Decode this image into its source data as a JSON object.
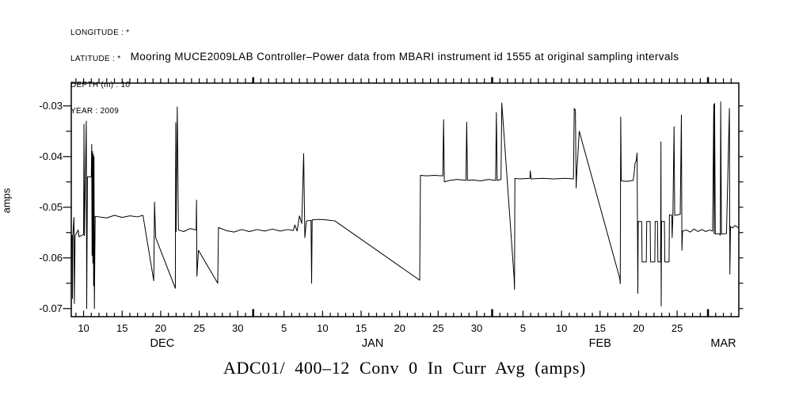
{
  "meta": {
    "lines": [
      "LONGITUDE : *",
      "LATITUDE : *",
      "DEPTH (m) : 10",
      "YEAR : 2009"
    ]
  },
  "header": {
    "title": "Mooring MUCE2009LAB Controller–Power data from MBARI instrument id 1555 at original sampling intervals"
  },
  "footer": {
    "title": "ADC01/ 400–12 Conv 0 In Curr Avg (amps)"
  },
  "chart_data": {
    "type": "line",
    "title": "Mooring MUCE2009LAB Controller–Power data from MBARI instrument id 1555 at original sampling intervals",
    "subtitle": "ADC01/ 400–12 Conv 0 In Curr Avg (amps)",
    "xlabel": "",
    "ylabel": "amps",
    "grid": false,
    "legend_position": "none",
    "line_color": "#000000",
    "background_color": "#ffffff",
    "x_axis": {
      "unit": "days, 0 = 2008-12-01",
      "range": [
        7.4,
        94.0
      ],
      "day_tick_from": 8,
      "day_tick_to": 93,
      "labeled_ticks": [
        {
          "t": 9,
          "label": "10"
        },
        {
          "t": 14,
          "label": "15"
        },
        {
          "t": 19,
          "label": "20"
        },
        {
          "t": 24,
          "label": "25"
        },
        {
          "t": 29,
          "label": "30"
        },
        {
          "t": 35,
          "label": "5"
        },
        {
          "t": 40,
          "label": "10"
        },
        {
          "t": 45,
          "label": "15"
        },
        {
          "t": 50,
          "label": "20"
        },
        {
          "t": 55,
          "label": "25"
        },
        {
          "t": 60,
          "label": "30"
        },
        {
          "t": 66,
          "label": "5"
        },
        {
          "t": 71,
          "label": "10"
        },
        {
          "t": 76,
          "label": "15"
        },
        {
          "t": 81,
          "label": "20"
        },
        {
          "t": 86,
          "label": "25"
        }
      ],
      "month_boundary_ticks": [
        31,
        62,
        90
      ],
      "month_labels": [
        {
          "t": 19.2,
          "label": "DEC"
        },
        {
          "t": 46.5,
          "label": "JAN"
        },
        {
          "t": 76.0,
          "label": "FEB"
        },
        {
          "t": 92.0,
          "label": "MAR"
        }
      ]
    },
    "y_axis": {
      "range_top": -0.0255,
      "range_bottom": -0.0716,
      "major_ticks": [
        -0.03,
        -0.04,
        -0.05,
        -0.06,
        -0.07
      ],
      "major_tick_labels": [
        "-0.03",
        "-0.04",
        "-0.05",
        "-0.06",
        "-0.07"
      ],
      "minor_ticks": [
        -0.035,
        -0.045,
        -0.055,
        -0.065
      ],
      "right_tick_step": 0.005
    },
    "series": [
      {
        "name": "ADC01/ 400-12 Conv 0 In Curr Avg (amps)",
        "points": [
          [
            7.5,
            -0.0556
          ],
          [
            7.55,
            -0.068
          ],
          [
            7.6,
            -0.0556
          ],
          [
            7.75,
            -0.052
          ],
          [
            7.8,
            -0.069
          ],
          [
            7.9,
            -0.0556
          ],
          [
            8.3,
            -0.0545
          ],
          [
            8.4,
            -0.0558
          ],
          [
            9.0,
            -0.0554
          ],
          [
            9.05,
            -0.0336
          ],
          [
            9.1,
            -0.0556
          ],
          [
            9.35,
            -0.033
          ],
          [
            9.4,
            -0.07
          ],
          [
            9.5,
            -0.044
          ],
          [
            10.0,
            -0.044
          ],
          [
            10.05,
            -0.0376
          ],
          [
            10.1,
            -0.0595
          ],
          [
            10.15,
            -0.039
          ],
          [
            10.2,
            -0.061
          ],
          [
            10.25,
            -0.0395
          ],
          [
            10.3,
            -0.0655
          ],
          [
            10.35,
            -0.04
          ],
          [
            10.4,
            -0.07
          ],
          [
            10.5,
            -0.0518
          ],
          [
            11.0,
            -0.0519
          ],
          [
            12.0,
            -0.0521
          ],
          [
            13.0,
            -0.0516
          ],
          [
            14.0,
            -0.052
          ],
          [
            15.0,
            -0.0517
          ],
          [
            16.0,
            -0.0519
          ],
          [
            16.7,
            -0.0516
          ],
          [
            18.1,
            -0.0645
          ],
          [
            18.2,
            -0.049
          ],
          [
            18.35,
            -0.056
          ],
          [
            20.9,
            -0.066
          ],
          [
            20.95,
            -0.0333
          ],
          [
            21.0,
            -0.0548
          ],
          [
            21.15,
            -0.0302
          ],
          [
            21.3,
            -0.0545
          ],
          [
            22.0,
            -0.0548
          ],
          [
            22.8,
            -0.0542
          ],
          [
            23.6,
            -0.0545
          ],
          [
            23.65,
            -0.0486
          ],
          [
            23.7,
            -0.0636
          ],
          [
            23.9,
            -0.0585
          ],
          [
            26.4,
            -0.065
          ],
          [
            26.5,
            -0.054
          ],
          [
            27.5,
            -0.0546
          ],
          [
            28.5,
            -0.0549
          ],
          [
            29.5,
            -0.0544
          ],
          [
            30.5,
            -0.0548
          ],
          [
            31.5,
            -0.0544
          ],
          [
            32.5,
            -0.0547
          ],
          [
            33.5,
            -0.0543
          ],
          [
            34.5,
            -0.0547
          ],
          [
            35.5,
            -0.0544
          ],
          [
            36.2,
            -0.0546
          ],
          [
            36.4,
            -0.0535
          ],
          [
            36.7,
            -0.0547
          ],
          [
            37.0,
            -0.0517
          ],
          [
            37.3,
            -0.0532
          ],
          [
            37.55,
            -0.0394
          ],
          [
            37.7,
            -0.056
          ],
          [
            37.9,
            -0.0527
          ],
          [
            38.5,
            -0.0526
          ],
          [
            38.58,
            -0.065
          ],
          [
            38.65,
            -0.0525
          ],
          [
            39.5,
            -0.0524
          ],
          [
            40.5,
            -0.0525
          ],
          [
            41.6,
            -0.0527
          ],
          [
            52.6,
            -0.0644
          ],
          [
            52.7,
            -0.0437
          ],
          [
            53.5,
            -0.0438
          ],
          [
            54.5,
            -0.0437
          ],
          [
            55.6,
            -0.0438
          ],
          [
            55.7,
            -0.0327
          ],
          [
            55.8,
            -0.045
          ],
          [
            56.5,
            -0.0447
          ],
          [
            57.5,
            -0.0445
          ],
          [
            58.6,
            -0.0447
          ],
          [
            58.7,
            -0.0332
          ],
          [
            58.8,
            -0.0447
          ],
          [
            59.5,
            -0.0446
          ],
          [
            60.5,
            -0.0448
          ],
          [
            61.5,
            -0.0445
          ],
          [
            62.45,
            -0.0447
          ],
          [
            62.55,
            -0.0313
          ],
          [
            62.65,
            -0.0447
          ],
          [
            63.15,
            -0.0445
          ],
          [
            63.25,
            -0.0294
          ],
          [
            64.85,
            -0.064
          ],
          [
            64.9,
            -0.0662
          ],
          [
            64.95,
            -0.0443
          ],
          [
            65.5,
            -0.0444
          ],
          [
            66.9,
            -0.0443
          ],
          [
            66.95,
            -0.0428
          ],
          [
            67.05,
            -0.0444
          ],
          [
            68.5,
            -0.0443
          ],
          [
            70.0,
            -0.0444
          ],
          [
            71.5,
            -0.0443
          ],
          [
            72.55,
            -0.0444
          ],
          [
            72.65,
            -0.0305
          ],
          [
            72.8,
            -0.0308
          ],
          [
            72.9,
            -0.0462
          ],
          [
            72.95,
            -0.044
          ],
          [
            73.3,
            -0.035
          ],
          [
            78.55,
            -0.064
          ],
          [
            78.62,
            -0.0651
          ],
          [
            78.68,
            -0.0322
          ],
          [
            78.75,
            -0.0448
          ],
          [
            79.5,
            -0.0449
          ],
          [
            80.3,
            -0.0447
          ],
          [
            80.45,
            -0.0428
          ],
          [
            80.55,
            -0.0412
          ],
          [
            80.7,
            -0.0408
          ],
          [
            80.8,
            -0.0393
          ],
          [
            80.9,
            -0.067
          ],
          [
            80.95,
            -0.0528
          ],
          [
            81.4,
            -0.0528
          ],
          [
            81.45,
            -0.0608
          ],
          [
            82.0,
            -0.0608
          ],
          [
            82.05,
            -0.0528
          ],
          [
            82.5,
            -0.0528
          ],
          [
            82.55,
            -0.0608
          ],
          [
            83.1,
            -0.0608
          ],
          [
            83.15,
            -0.0528
          ],
          [
            83.45,
            -0.0528
          ],
          [
            83.5,
            -0.0608
          ],
          [
            83.85,
            -0.0608
          ],
          [
            83.9,
            -0.0371
          ],
          [
            83.93,
            -0.0695
          ],
          [
            83.98,
            -0.0528
          ],
          [
            84.35,
            -0.0528
          ],
          [
            84.4,
            -0.0608
          ],
          [
            84.95,
            -0.0608
          ],
          [
            85.0,
            -0.0515
          ],
          [
            85.3,
            -0.0516
          ],
          [
            85.35,
            -0.056
          ],
          [
            85.45,
            -0.0515
          ],
          [
            85.6,
            -0.0341
          ],
          [
            85.68,
            -0.0516
          ],
          [
            86.4,
            -0.0514
          ],
          [
            86.55,
            -0.0318
          ],
          [
            86.62,
            -0.0585
          ],
          [
            86.7,
            -0.0547
          ],
          [
            87.2,
            -0.0545
          ],
          [
            87.7,
            -0.0549
          ],
          [
            88.2,
            -0.0543
          ],
          [
            88.7,
            -0.0548
          ],
          [
            89.2,
            -0.0544
          ],
          [
            89.7,
            -0.0548
          ],
          [
            90.2,
            -0.0545
          ],
          [
            90.6,
            -0.0547
          ],
          [
            90.75,
            -0.0297
          ],
          [
            90.8,
            -0.0552
          ],
          [
            90.86,
            -0.0295
          ],
          [
            90.95,
            -0.0553
          ],
          [
            91.4,
            -0.0552
          ],
          [
            91.6,
            -0.0555
          ],
          [
            91.65,
            -0.0292
          ],
          [
            91.75,
            -0.0553
          ],
          [
            92.4,
            -0.0552
          ],
          [
            92.78,
            -0.0305
          ],
          [
            92.84,
            -0.0632
          ],
          [
            92.92,
            -0.0538
          ],
          [
            93.2,
            -0.0541
          ],
          [
            93.5,
            -0.0536
          ],
          [
            93.9,
            -0.054
          ]
        ]
      }
    ]
  }
}
